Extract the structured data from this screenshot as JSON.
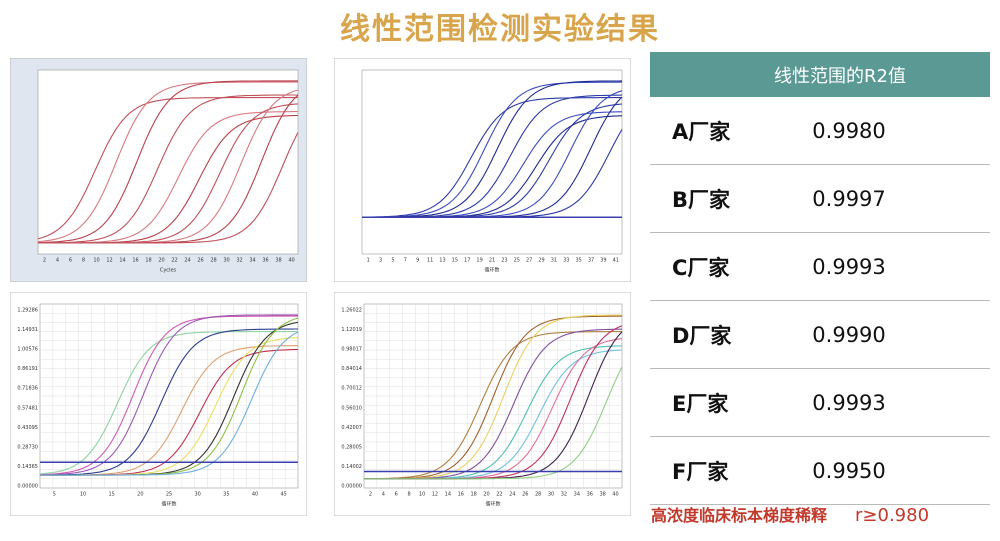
{
  "title": "线性范围检测实验结果",
  "plots": [
    {
      "x_ticks": [
        "2",
        "4",
        "6",
        "8",
        "10",
        "12",
        "14",
        "16",
        "18",
        "20",
        "22",
        "24",
        "26",
        "28",
        "30",
        "32",
        "34",
        "36",
        "38",
        "40"
      ],
      "x_label": "Cycles"
    },
    {
      "x_ticks": [
        "1",
        "3",
        "5",
        "7",
        "9",
        "11",
        "13",
        "15",
        "17",
        "19",
        "21",
        "23",
        "25",
        "27",
        "29",
        "31",
        "33",
        "35",
        "37",
        "39",
        "41"
      ],
      "x_label": "循环数"
    },
    {
      "x_ticks": [
        "5",
        "10",
        "15",
        "20",
        "25",
        "30",
        "35",
        "40",
        "45"
      ],
      "y_ticks": [
        "1.29286",
        "1.14931",
        "1.00576",
        "0.86191",
        "0.71836",
        "0.57481",
        "0.43095",
        "0.28730",
        "0.14365",
        "0.00000"
      ],
      "x_label": "循环数"
    },
    {
      "x_ticks": [
        "2",
        "4",
        "6",
        "8",
        "10",
        "12",
        "14",
        "16",
        "18",
        "20",
        "22",
        "24",
        "26",
        "28",
        "30",
        "32",
        "34",
        "36",
        "38",
        "40"
      ],
      "y_ticks": [
        "1.26022",
        "1.12019",
        "0.98017",
        "0.84014",
        "0.70012",
        "0.56010",
        "0.42007",
        "0.28005",
        "0.14002",
        "0.00000"
      ],
      "x_label": "循环数"
    }
  ],
  "table": {
    "header": "线性范围的R2值",
    "rows": [
      {
        "label": "A厂家",
        "value": "0.9980"
      },
      {
        "label": "B厂家",
        "value": "0.9997"
      },
      {
        "label": "C厂家",
        "value": "0.9993"
      },
      {
        "label": "D厂家",
        "value": "0.9990"
      },
      {
        "label": "E厂家",
        "value": "0.9993"
      },
      {
        "label": "F厂家",
        "value": "0.9950"
      }
    ]
  },
  "footnote": {
    "text": "高浓度临床标本梯度稀释",
    "criterion": "r≥0.980"
  }
}
